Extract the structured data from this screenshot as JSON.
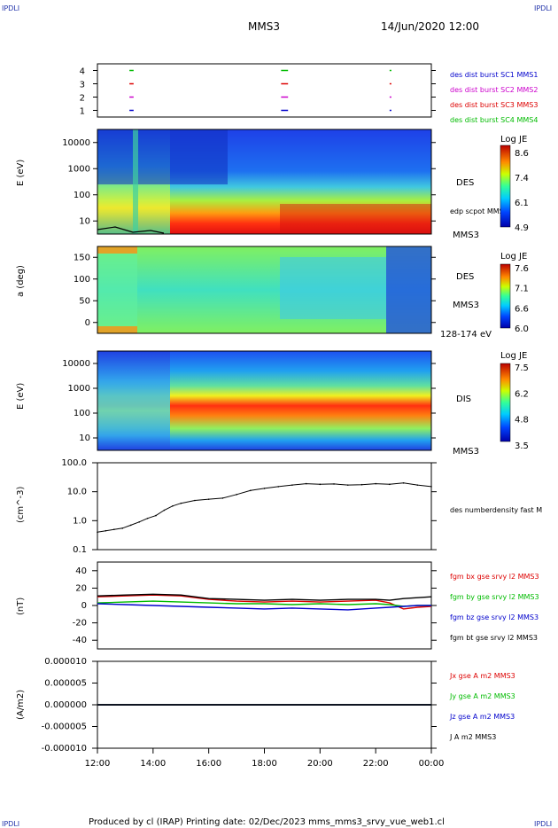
{
  "corner_label": "IPDLI",
  "header": {
    "spacecraft": "MMS3",
    "datetime": "14/Jun/2020 12:00"
  },
  "footer": {
    "text": "Produced by cl (IRAP)   Printing date: 02/Dec/2023   mms_mms3_srvy_vue_web1.cl"
  },
  "colors": {
    "mms1": "#0000cc",
    "mms2": "#cc00cc",
    "mms3": "#dd0000",
    "mms4": "#00bb00",
    "black": "#000000"
  },
  "chart_data": [
    {
      "type": "scatter",
      "panel": "burst-intervals",
      "ylim": [
        0.5,
        4.5
      ],
      "y_ticks": [
        "1",
        "2",
        "3",
        "4"
      ],
      "legend": [
        {
          "name": "des dist burst SC1 MMS1",
          "color": "#0000cc",
          "y": 1
        },
        {
          "name": "des dist burst SC2 MMS2",
          "color": "#cc00cc",
          "y": 2
        },
        {
          "name": "des dist burst SC3 MMS3",
          "color": "#dd0000",
          "y": 3
        },
        {
          "name": "des dist burst SC4 MMS4",
          "color": "#00bb00",
          "y": 4
        }
      ],
      "intervals_hours": [
        [
          13.15,
          13.3
        ],
        [
          18.6,
          18.85
        ],
        [
          22.5,
          22.55
        ]
      ]
    },
    {
      "type": "heatmap",
      "panel": "des-energy",
      "ylabel": "E (eV)",
      "y_ticks": [
        "10",
        "100",
        "1000",
        "10000"
      ],
      "ylim_log": [
        10,
        30000
      ],
      "right_labels": [
        "DES",
        "edp scpot MMS3",
        "MMS3"
      ],
      "colorbar": {
        "title": "Log JE",
        "ticks": [
          "8.6",
          "7.4",
          "6.1",
          "4.9"
        ]
      }
    },
    {
      "type": "heatmap",
      "panel": "des-pitch-angle",
      "ylabel": "a (deg)",
      "y_ticks": [
        "0",
        "50",
        "100",
        "150"
      ],
      "ylim": [
        0,
        180
      ],
      "right_labels": [
        "DES",
        "MMS3",
        "128-174 eV"
      ],
      "colorbar": {
        "title": "Log JE",
        "ticks": [
          "7.6",
          "7.1",
          "6.6",
          "6.0"
        ]
      }
    },
    {
      "type": "heatmap",
      "panel": "dis-energy",
      "ylabel": "E (eV)",
      "y_ticks": [
        "10",
        "100",
        "1000",
        "10000"
      ],
      "ylim_log": [
        10,
        30000
      ],
      "right_labels": [
        "DIS",
        "MMS3"
      ],
      "colorbar": {
        "title": "Log JE",
        "ticks": [
          "7.5",
          "6.2",
          "4.8",
          "3.5"
        ]
      }
    },
    {
      "type": "line",
      "panel": "density",
      "ylabel": "(cm^-3)",
      "y_ticks": [
        "0.1",
        "1.0",
        "10.0",
        "100.0"
      ],
      "ylim_log": [
        0.1,
        100
      ],
      "series": [
        {
          "name": "des numberdensity fast M",
          "color": "#000000",
          "x": [
            12.0,
            12.3,
            12.6,
            12.9,
            13.2,
            13.5,
            13.8,
            14.1,
            14.4,
            14.7,
            15.0,
            15.5,
            16.0,
            16.5,
            17.0,
            17.5,
            18.0,
            18.5,
            19.0,
            19.5,
            20.0,
            20.5,
            21.0,
            21.5,
            22.0,
            22.5,
            23.0,
            23.5,
            24.0
          ],
          "y": [
            0.4,
            0.45,
            0.5,
            0.55,
            0.7,
            0.9,
            1.2,
            1.5,
            2.3,
            3.2,
            4.0,
            5.0,
            5.5,
            6.0,
            8.0,
            11.0,
            13.0,
            15.0,
            17.0,
            19.0,
            18.0,
            18.5,
            17.0,
            17.5,
            19.0,
            18.0,
            20.0,
            17.0,
            15.0
          ]
        }
      ]
    },
    {
      "type": "line",
      "panel": "magnetic-field",
      "ylabel": "(nT)",
      "y_ticks": [
        "-40",
        "-20",
        "0",
        "20",
        "40"
      ],
      "ylim": [
        -50,
        50
      ],
      "series": [
        {
          "name": "fgm bx gse srvy l2 MMS3",
          "color": "#dd0000",
          "x": [
            12,
            13,
            14,
            15,
            16,
            17,
            18,
            19,
            20,
            21,
            22,
            22.5,
            23,
            23.5,
            24
          ],
          "y": [
            10,
            11,
            12,
            11,
            7,
            5,
            4,
            5,
            4,
            5,
            6,
            3,
            -4,
            -2,
            -1
          ]
        },
        {
          "name": "fgm by gse srvy l2 MMS3",
          "color": "#00bb00",
          "x": [
            12,
            13,
            14,
            15,
            16,
            17,
            18,
            19,
            20,
            21,
            22,
            22.5,
            23,
            23.5,
            24
          ],
          "y": [
            3,
            4,
            5,
            4,
            3,
            2,
            2,
            1,
            2,
            1,
            2,
            1,
            -1,
            0,
            0
          ]
        },
        {
          "name": "fgm bz gse srvy l2 MMS3",
          "color": "#0000cc",
          "x": [
            12,
            13,
            14,
            15,
            16,
            17,
            18,
            19,
            20,
            21,
            22,
            22.5,
            23,
            23.5,
            24
          ],
          "y": [
            2,
            1,
            0,
            -1,
            -2,
            -3,
            -4,
            -3,
            -4,
            -5,
            -3,
            -2,
            -1,
            0,
            0
          ]
        },
        {
          "name": "fgm bt gse srvy l2 MMS3",
          "color": "#000000",
          "x": [
            12,
            13,
            14,
            15,
            16,
            17,
            18,
            19,
            20,
            21,
            22,
            22.5,
            23,
            23.5,
            24
          ],
          "y": [
            11,
            12,
            13,
            12,
            8,
            7,
            6,
            7,
            6,
            7,
            7,
            6,
            8,
            9,
            10
          ]
        }
      ]
    },
    {
      "type": "line",
      "panel": "current-density",
      "ylabel": "(A/m2)",
      "y_ticks": [
        "-0.000010",
        "-0.000005",
        "0.000000",
        "0.000005",
        "0.000010"
      ],
      "ylim": [
        -1e-05,
        1e-05
      ],
      "series": [
        {
          "name": "Jx gse A m2 MMS3",
          "color": "#dd0000",
          "x": [
            12,
            24
          ],
          "y": [
            0,
            0
          ]
        },
        {
          "name": "Jy gse A m2 MMS3",
          "color": "#00bb00",
          "x": [
            12,
            24
          ],
          "y": [
            0,
            0
          ]
        },
        {
          "name": "Jz gse A m2 MMS3",
          "color": "#0000cc",
          "x": [
            12,
            24
          ],
          "y": [
            0,
            0
          ]
        },
        {
          "name": "J A m2 MMS3",
          "color": "#000000",
          "x": [
            12,
            24
          ],
          "y": [
            0,
            0
          ]
        }
      ]
    }
  ],
  "x_axis": {
    "tick_labels": [
      "12:00",
      "14:00",
      "16:00",
      "18:00",
      "20:00",
      "22:00",
      "00:00"
    ],
    "xlim_hours": [
      12,
      24
    ]
  }
}
